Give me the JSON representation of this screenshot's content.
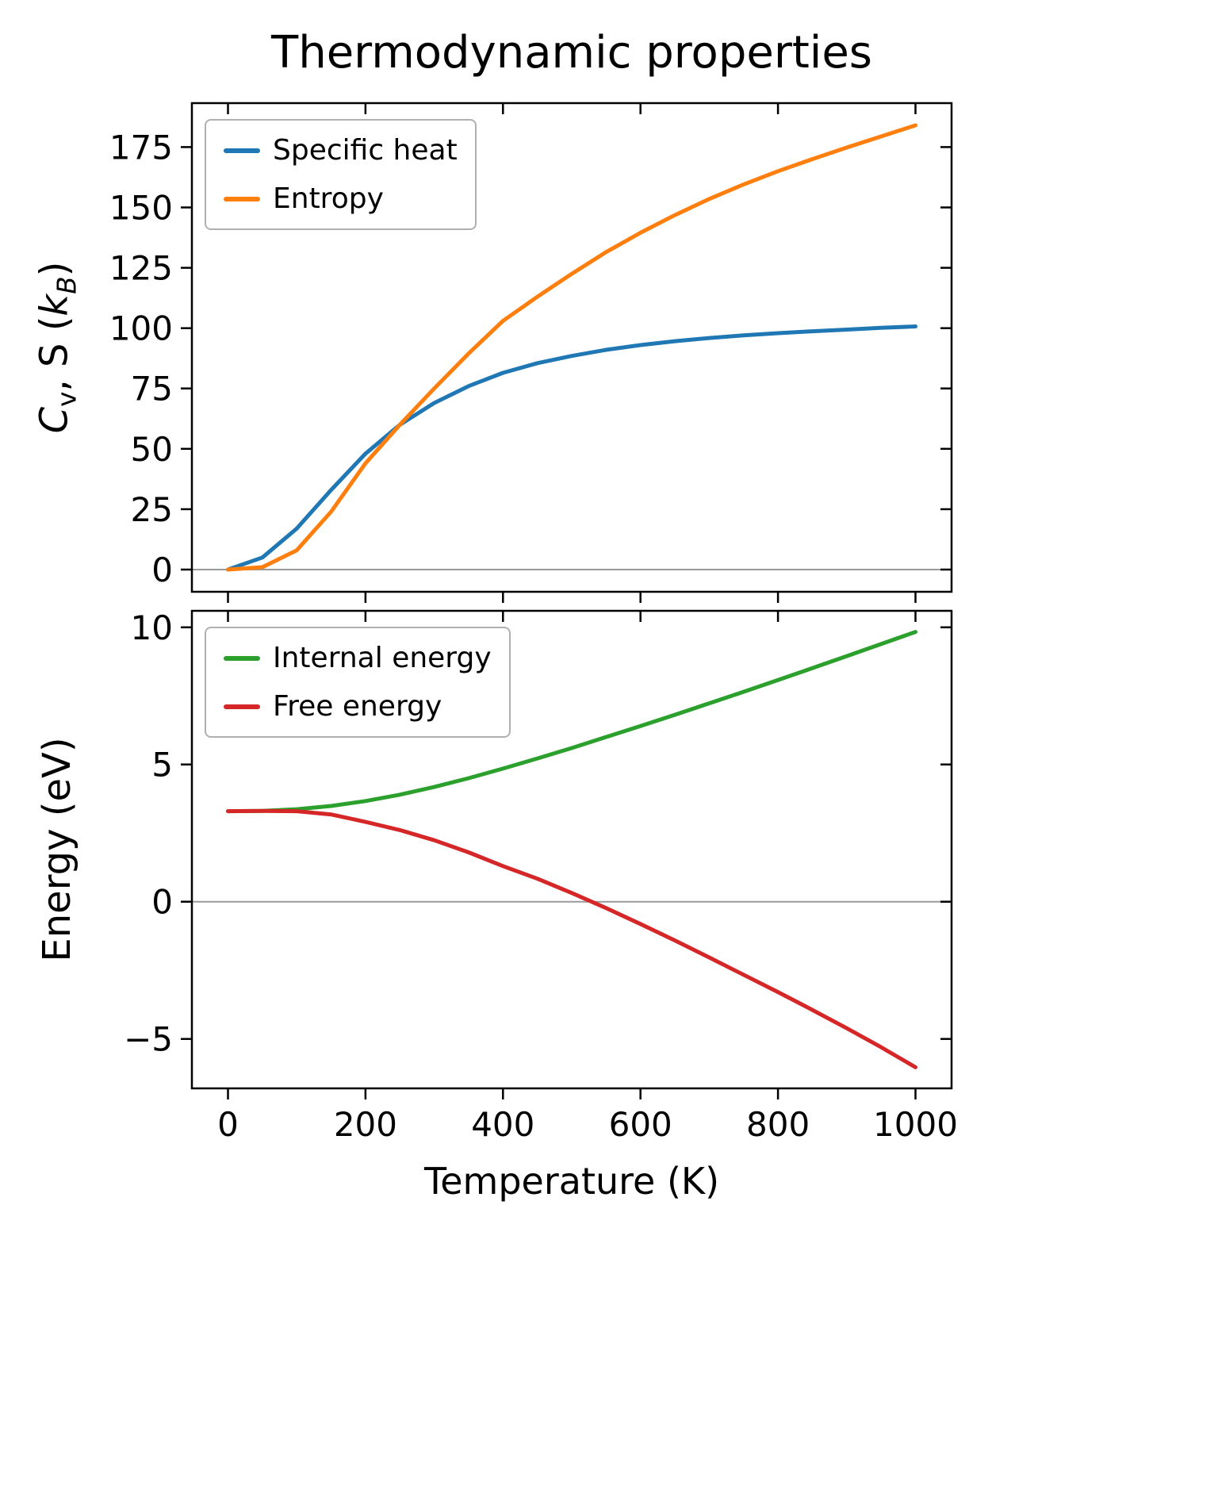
{
  "figure": {
    "title": "Thermodynamic properties"
  },
  "chart_data": [
    {
      "type": "line",
      "title": "Thermodynamic properties",
      "ylabel": "Cv, S (kB)",
      "ylabel_html": "<i>C</i><sub>v</sub>, S (<i>k<sub>B</sub></i>)",
      "xlabel": "",
      "xlim": [
        -52.5,
        1052.5
      ],
      "ylim": [
        -9.2,
        193.2
      ],
      "xticks": [
        0,
        200,
        400,
        600,
        800,
        1000
      ],
      "xtick_labels": [
        "0",
        "200",
        "400",
        "600",
        "800",
        "1000"
      ],
      "yticks": [
        0,
        25,
        50,
        75,
        100,
        125,
        150,
        175
      ],
      "ytick_labels": [
        "0",
        "25",
        "50",
        "75",
        "100",
        "125",
        "150",
        "175"
      ],
      "grid": false,
      "zero_line": true,
      "legend_position": "upper-left",
      "x": [
        0,
        50,
        100,
        150,
        200,
        250,
        300,
        350,
        400,
        450,
        500,
        550,
        600,
        650,
        700,
        750,
        800,
        850,
        900,
        950,
        1000
      ],
      "series": [
        {
          "name": "Specific heat",
          "color": "#1f77b4",
          "values": [
            0,
            5,
            17,
            33,
            48,
            60,
            69,
            76,
            81.5,
            85.5,
            88.5,
            91,
            93,
            94.6,
            95.9,
            97,
            97.9,
            98.7,
            99.4,
            100.1,
            100.7
          ]
        },
        {
          "name": "Entropy",
          "color": "#ff7f0e",
          "values": [
            0,
            1,
            8,
            24,
            44,
            60,
            75,
            89.5,
            103,
            113,
            122.5,
            131.5,
            139.5,
            146.8,
            153.5,
            159.5,
            165,
            170,
            174.8,
            179.4,
            184
          ]
        }
      ]
    },
    {
      "type": "line",
      "title": "",
      "ylabel": "Energy (eV)",
      "ylabel_html": "Energy (eV)",
      "xlabel": "Temperature (K)",
      "xlim": [
        -52.5,
        1052.5
      ],
      "ylim": [
        -6.8,
        10.6
      ],
      "xticks": [
        0,
        200,
        400,
        600,
        800,
        1000
      ],
      "xtick_labels": [
        "0",
        "200",
        "400",
        "600",
        "800",
        "1000"
      ],
      "yticks": [
        -5,
        0,
        5,
        10
      ],
      "ytick_labels": [
        "−5",
        "0",
        "5",
        "10"
      ],
      "grid": false,
      "zero_line": true,
      "legend_position": "upper-left",
      "x": [
        0,
        50,
        100,
        150,
        200,
        250,
        300,
        350,
        400,
        450,
        500,
        550,
        600,
        650,
        700,
        750,
        800,
        850,
        900,
        950,
        1000
      ],
      "series": [
        {
          "name": "Internal energy",
          "color": "#2ca02c",
          "values": [
            3.3,
            3.31,
            3.37,
            3.49,
            3.67,
            3.9,
            4.18,
            4.5,
            4.85,
            5.22,
            5.6,
            6.0,
            6.4,
            6.81,
            7.23,
            7.65,
            8.08,
            8.51,
            8.95,
            9.39,
            9.83
          ]
        },
        {
          "name": "Free energy",
          "color": "#d62728",
          "values": [
            3.3,
            3.31,
            3.3,
            3.18,
            2.91,
            2.61,
            2.24,
            1.8,
            1.3,
            0.84,
            0.32,
            -0.23,
            -0.81,
            -1.41,
            -2.03,
            -2.66,
            -3.29,
            -3.94,
            -4.61,
            -5.3,
            -6.03
          ]
        }
      ]
    }
  ]
}
